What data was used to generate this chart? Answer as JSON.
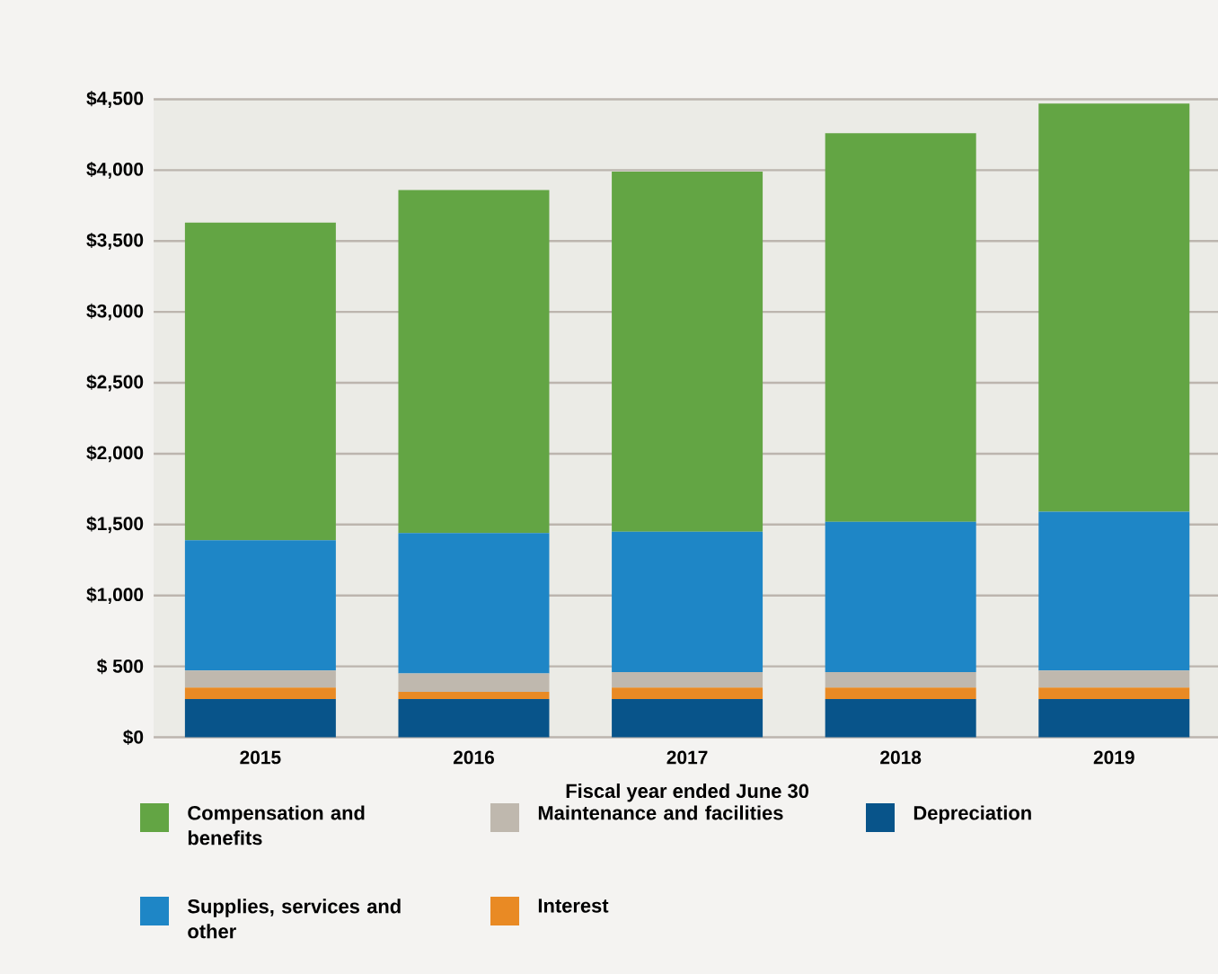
{
  "chart_data": {
    "type": "bar",
    "stacked": true,
    "xlabel": "Fiscal year ended June 30",
    "categories": [
      "2015",
      "2016",
      "2017",
      "2018",
      "2019"
    ],
    "series": [
      {
        "name": "Depreciation",
        "color": "#08548a",
        "values": [
          270,
          270,
          270,
          270,
          270
        ]
      },
      {
        "name": "Interest",
        "color": "#e98a24",
        "values": [
          80,
          50,
          80,
          80,
          80
        ]
      },
      {
        "name": "Maintenance and facilities",
        "color": "#bfb8ae",
        "values": [
          120,
          130,
          110,
          110,
          120
        ]
      },
      {
        "name": "Supplies, services and other",
        "color": "#1e86c6",
        "values": [
          920,
          990,
          990,
          1060,
          1120
        ]
      },
      {
        "name": "Compensation and benefits",
        "color": "#63a544",
        "values": [
          2240,
          2420,
          2540,
          2740,
          2880
        ]
      }
    ],
    "ylim": [
      0,
      4500
    ],
    "yticks": [
      {
        "value": 0,
        "label": "$0"
      },
      {
        "value": 500,
        "label": "$ 500"
      },
      {
        "value": 1000,
        "label": "$1,000"
      },
      {
        "value": 1500,
        "label": "$1,500"
      },
      {
        "value": 2000,
        "label": "$2,000"
      },
      {
        "value": 2500,
        "label": "$2,500"
      },
      {
        "value": 3000,
        "label": "$3,000"
      },
      {
        "value": 3500,
        "label": "$3,500"
      },
      {
        "value": 4000,
        "label": "$4,000"
      },
      {
        "value": 4500,
        "label": "$4,500"
      }
    ],
    "grid": "y",
    "legend": "bottom"
  }
}
